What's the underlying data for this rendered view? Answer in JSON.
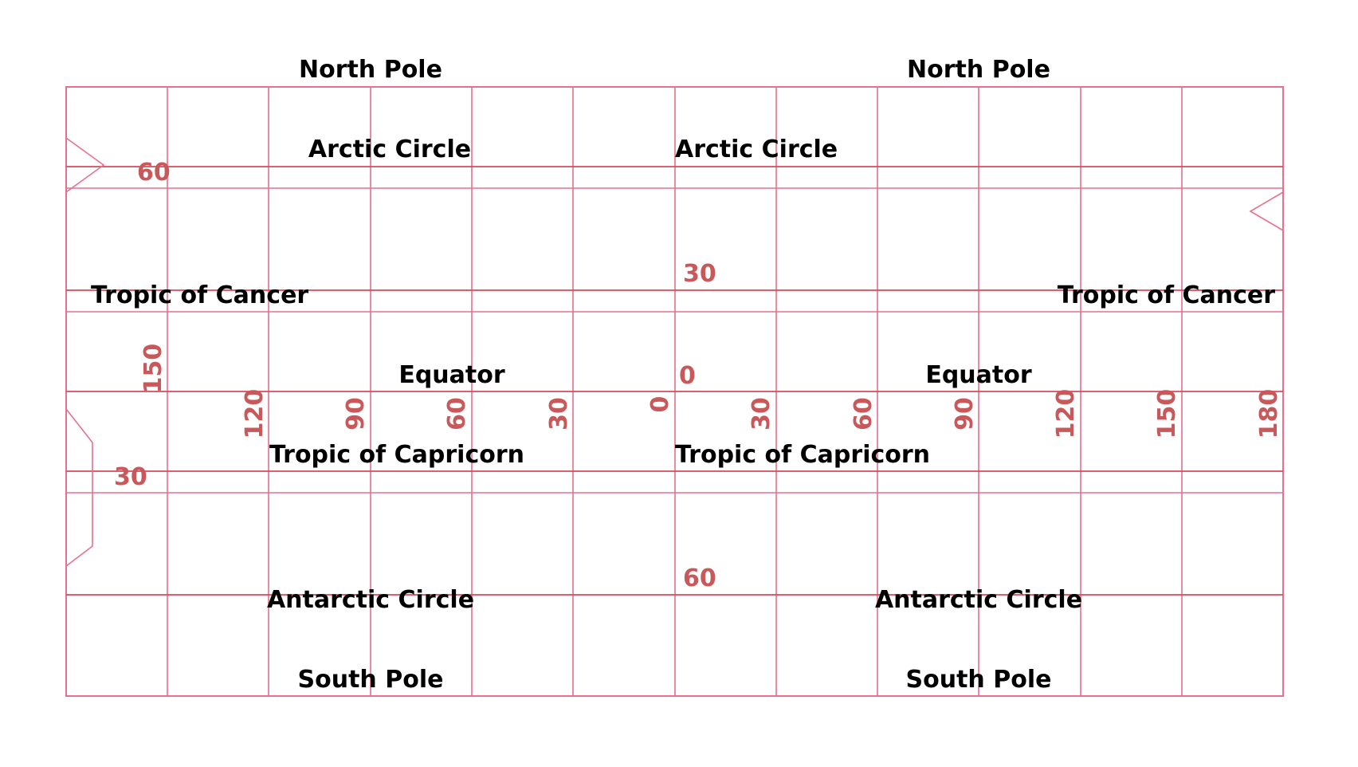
{
  "colors": {
    "grid": "#e8708d",
    "circles": "#d84a5a",
    "coord_text": "#c8585a",
    "label_text": "#000000",
    "background": "#ffffff"
  },
  "map": {
    "projection": "equirectangular",
    "left_hemisphere_lon_labels": [
      "150",
      "120",
      "90",
      "60",
      "30",
      "0"
    ],
    "right_hemisphere_lon_labels": [
      "30",
      "60",
      "90",
      "120",
      "150",
      "180"
    ],
    "lat_labels": {
      "left_upper": "60",
      "left_lower": "30",
      "center_upper": "30",
      "center_zero": "0",
      "center_lower": "60"
    },
    "circle_labels": {
      "north_pole_left": "North Pole",
      "north_pole_right": "North Pole",
      "arctic_left": "Arctic Circle",
      "arctic_right": "Arctic Circle",
      "cancer_left": "Tropic of Cancer",
      "cancer_right": "Tropic of Cancer",
      "equator_left": "Equator",
      "equator_right": "Equator",
      "capricorn_left": "Tropic of Capricorn",
      "capricorn_right": "Tropic of Capricorn",
      "antarctic_left": "Antarctic Circle",
      "antarctic_right": "Antarctic Circle",
      "south_pole_left": "South Pole",
      "south_pole_right": "South Pole"
    }
  }
}
